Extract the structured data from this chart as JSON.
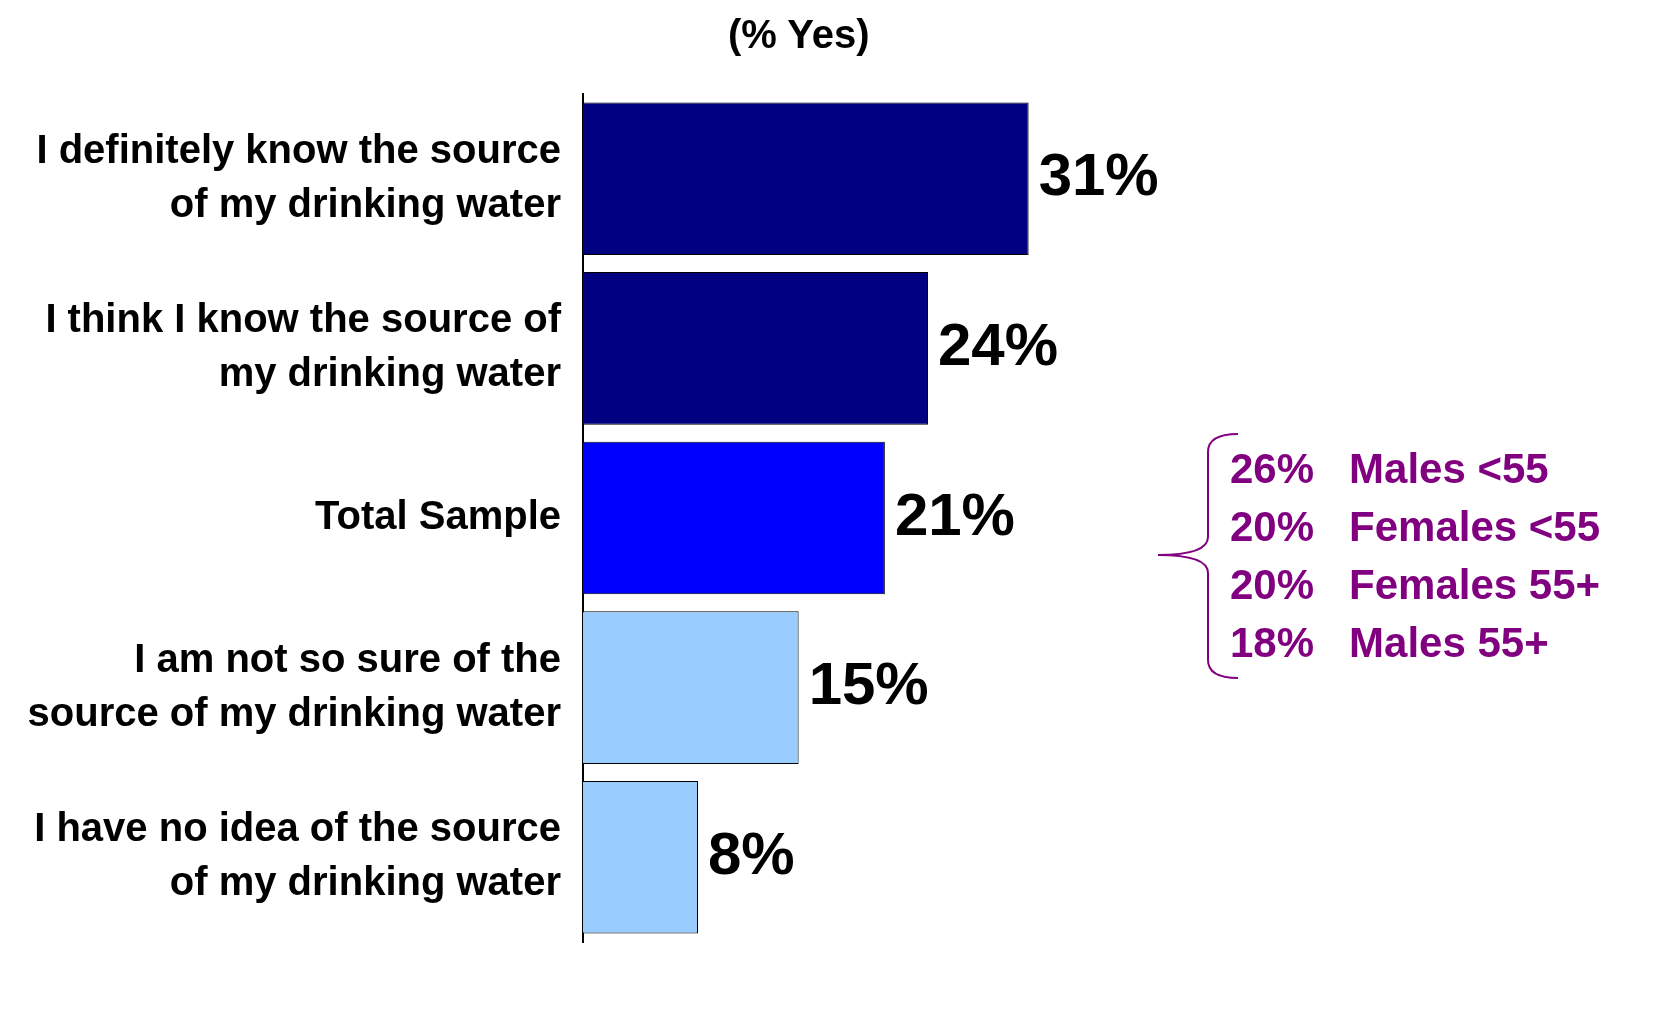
{
  "chart_data": {
    "type": "bar",
    "orientation": "horizontal",
    "title": "(% Yes)",
    "categories": [
      "I definitely know the source of my drinking water",
      "I think I know the source of my drinking water",
      "Total Sample",
      "I am not so sure of the source of my drinking water",
      "I have no idea of the source of my drinking water"
    ],
    "values": [
      31,
      24,
      21,
      15,
      8
    ],
    "colors": [
      "#000080",
      "#000080",
      "#0000ff",
      "#99ccff",
      "#99ccff"
    ],
    "value_labels": [
      "31%",
      "24%",
      "21%",
      "15%",
      "8%"
    ],
    "tick_labels": "y",
    "grid": false,
    "legend": false,
    "annotations": [
      "26%   Males <55",
      "20%   Females <55",
      "20%   Females 55+",
      "18%   Males 55+"
    ]
  }
}
